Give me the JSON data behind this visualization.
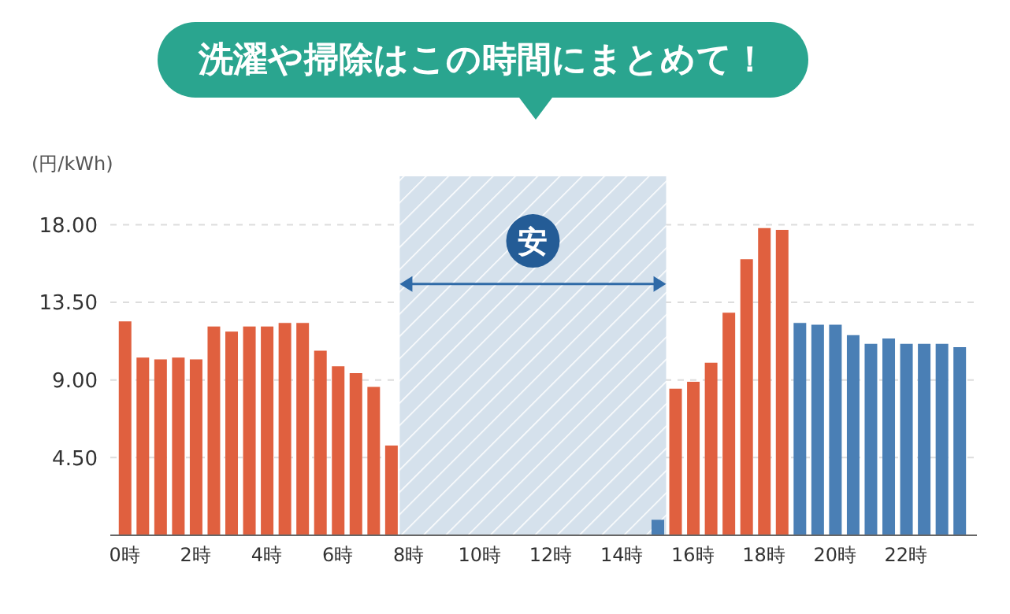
{
  "chart_data": {
    "type": "bar",
    "title": "洗濯や掃除はこの時間にまとめて！",
    "ylabel": "(円/kWh)",
    "x": [
      0,
      0.5,
      1,
      1.5,
      2,
      2.5,
      3,
      3.5,
      4,
      4.5,
      5,
      5.5,
      6,
      6.5,
      7,
      7.5,
      8,
      8.5,
      9,
      9.5,
      10,
      10.5,
      11,
      11.5,
      12,
      12.5,
      13,
      13.5,
      14,
      14.5,
      15,
      15.5,
      16,
      16.5,
      17,
      17.5,
      18,
      18.5,
      19,
      19.5,
      20,
      20.5,
      21,
      21.5,
      22,
      22.5,
      23,
      23.5
    ],
    "values": [
      12.4,
      10.3,
      10.2,
      10.3,
      10.2,
      12.1,
      11.8,
      12.1,
      12.1,
      12.3,
      12.3,
      10.7,
      9.8,
      9.4,
      8.6,
      5.2,
      null,
      null,
      null,
      null,
      null,
      null,
      null,
      null,
      null,
      null,
      null,
      null,
      null,
      null,
      0.9,
      8.5,
      8.9,
      10.0,
      12.9,
      16.0,
      17.8,
      17.7,
      12.3,
      12.2,
      12.2,
      11.6,
      11.1,
      11.4,
      11.1,
      11.1,
      11.1,
      10.9
    ],
    "colors": [
      "#e0603f",
      "#e0603f",
      "#e0603f",
      "#e0603f",
      "#e0603f",
      "#e0603f",
      "#e0603f",
      "#e0603f",
      "#e0603f",
      "#e0603f",
      "#e0603f",
      "#e0603f",
      "#e0603f",
      "#e0603f",
      "#e0603f",
      "#e0603f",
      "#e0603f",
      "#e0603f",
      "#e0603f",
      "#e0603f",
      "#e0603f",
      "#e0603f",
      "#e0603f",
      "#e0603f",
      "#e0603f",
      "#e0603f",
      "#e0603f",
      "#e0603f",
      "#e0603f",
      "#e0603f",
      "#4a7fb5",
      "#e0603f",
      "#e0603f",
      "#e0603f",
      "#e0603f",
      "#e0603f",
      "#e0603f",
      "#e0603f",
      "#4a7fb5",
      "#4a7fb5",
      "#4a7fb5",
      "#4a7fb5",
      "#4a7fb5",
      "#4a7fb5",
      "#4a7fb5",
      "#4a7fb5",
      "#4a7fb5",
      "#4a7fb5"
    ],
    "xlim": [
      -0.4,
      24
    ],
    "xticks": [
      {
        "value": 0,
        "label": "0時"
      },
      {
        "value": 2,
        "label": "2時"
      },
      {
        "value": 4,
        "label": "4時"
      },
      {
        "value": 6,
        "label": "6時"
      },
      {
        "value": 8,
        "label": "8時"
      },
      {
        "value": 10,
        "label": "10時"
      },
      {
        "value": 12,
        "label": "12時"
      },
      {
        "value": 14,
        "label": "14時"
      },
      {
        "value": 16,
        "label": "16時"
      },
      {
        "value": 18,
        "label": "18時"
      },
      {
        "value": 20,
        "label": "20時"
      },
      {
        "value": 22,
        "label": "22時"
      }
    ],
    "ylim": [
      0,
      20.8
    ],
    "yticks": [
      {
        "value": 4.5,
        "label": "4.50"
      },
      {
        "value": 9,
        "label": "9.00"
      },
      {
        "value": 13.5,
        "label": "13.50"
      },
      {
        "value": 18,
        "label": "18.00"
      }
    ],
    "grid": "y",
    "bands": [
      {
        "axis": "x",
        "from": 7.75,
        "to": 15.25,
        "label": "安",
        "color": "#d5e1ec"
      }
    ]
  }
}
